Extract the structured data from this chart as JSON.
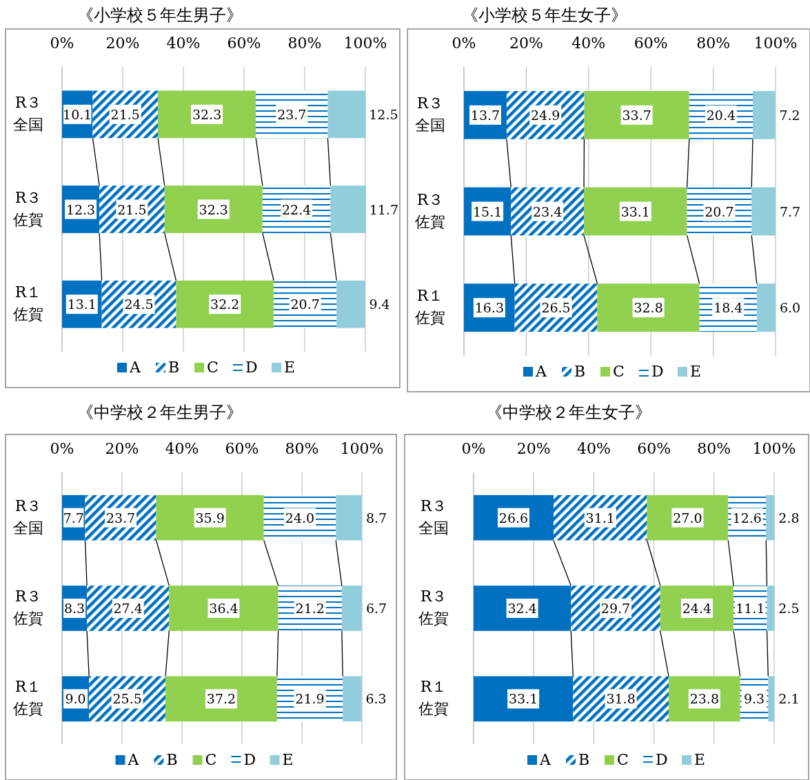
{
  "chart_data": [
    {
      "type": "bar",
      "orientation": "horizontal",
      "stacked": true,
      "title": "《小学校５年生男子》",
      "categories": [
        "R３全国",
        "R３佐賀",
        "R１佐賀"
      ],
      "xlim": [
        0,
        100
      ],
      "xticks": [
        {
          "value": 0,
          "label": "0%"
        },
        {
          "value": 20,
          "label": "20%"
        },
        {
          "value": 40,
          "label": "40%"
        },
        {
          "value": 60,
          "label": "60%"
        },
        {
          "value": 80,
          "label": "80%"
        },
        {
          "value": 100,
          "label": "100%"
        }
      ],
      "grid": "x",
      "legend": "bottom",
      "series": [
        {
          "name": "A",
          "color": "#0070c0",
          "values": [
            10.1,
            12.3,
            13.1
          ],
          "value_labels": [
            "10.1",
            "12.3",
            "13.1"
          ]
        },
        {
          "name": "B",
          "color": "#0070c0",
          "values": [
            21.5,
            21.5,
            24.5
          ],
          "value_labels": [
            "21.5",
            "21.5",
            "24.5"
          ]
        },
        {
          "name": "C",
          "color": "#92d050",
          "values": [
            32.3,
            32.3,
            32.2
          ],
          "value_labels": [
            "32.3",
            "32.3",
            "32.2"
          ]
        },
        {
          "name": "D",
          "color": "#0070c0",
          "values": [
            23.7,
            22.4,
            20.7
          ],
          "value_labels": [
            "23.7",
            "22.4",
            "20.7"
          ]
        },
        {
          "name": "E",
          "color": "#92cddc",
          "values": [
            12.5,
            11.7,
            9.4
          ],
          "value_labels": [
            "12.5",
            "11.7",
            "9.4"
          ]
        }
      ]
    },
    {
      "type": "bar",
      "orientation": "horizontal",
      "stacked": true,
      "title": "《小学校５年生女子》",
      "categories": [
        "R３全国",
        "R３佐賀",
        "R１佐賀"
      ],
      "xlim": [
        0,
        100
      ],
      "xticks": [
        {
          "value": 0,
          "label": "0%"
        },
        {
          "value": 20,
          "label": "20%"
        },
        {
          "value": 40,
          "label": "40%"
        },
        {
          "value": 60,
          "label": "60%"
        },
        {
          "value": 80,
          "label": "80%"
        },
        {
          "value": 100,
          "label": "100%"
        }
      ],
      "grid": "x",
      "legend": "bottom",
      "series": [
        {
          "name": "A",
          "color": "#0070c0",
          "values": [
            13.7,
            15.1,
            16.3
          ],
          "value_labels": [
            "13.7",
            "15.1",
            "16.3"
          ]
        },
        {
          "name": "B",
          "color": "#0070c0",
          "values": [
            24.9,
            23.4,
            26.5
          ],
          "value_labels": [
            "24.9",
            "23.4",
            "26.5"
          ]
        },
        {
          "name": "C",
          "color": "#92d050",
          "values": [
            33.7,
            33.1,
            32.8
          ],
          "value_labels": [
            "33.7",
            "33.1",
            "32.8"
          ]
        },
        {
          "name": "D",
          "color": "#0070c0",
          "values": [
            20.4,
            20.7,
            18.4
          ],
          "value_labels": [
            "20.4",
            "20.7",
            "18.4"
          ]
        },
        {
          "name": "E",
          "color": "#92cddc",
          "values": [
            7.2,
            7.7,
            6.0
          ],
          "value_labels": [
            "7.2",
            "7.7",
            "6.0"
          ]
        }
      ]
    },
    {
      "type": "bar",
      "orientation": "horizontal",
      "stacked": true,
      "title": "《中学校２年生男子》",
      "categories": [
        "R３全国",
        "R３佐賀",
        "R１佐賀"
      ],
      "xlim": [
        0,
        100
      ],
      "xticks": [
        {
          "value": 0,
          "label": "0%"
        },
        {
          "value": 20,
          "label": "20%"
        },
        {
          "value": 40,
          "label": "40%"
        },
        {
          "value": 60,
          "label": "60%"
        },
        {
          "value": 80,
          "label": "80%"
        },
        {
          "value": 100,
          "label": "100%"
        }
      ],
      "grid": "x",
      "legend": "bottom",
      "series": [
        {
          "name": "A",
          "color": "#0070c0",
          "values": [
            7.7,
            8.3,
            9.0
          ],
          "value_labels": [
            "7.7",
            "8.3",
            "9.0"
          ]
        },
        {
          "name": "B",
          "color": "#0070c0",
          "values": [
            23.7,
            27.4,
            25.5
          ],
          "value_labels": [
            "23.7",
            "27.4",
            "25.5"
          ]
        },
        {
          "name": "C",
          "color": "#92d050",
          "values": [
            35.9,
            36.4,
            37.2
          ],
          "value_labels": [
            "35.9",
            "36.4",
            "37.2"
          ]
        },
        {
          "name": "D",
          "color": "#0070c0",
          "values": [
            24.0,
            21.2,
            21.9
          ],
          "value_labels": [
            "24.0",
            "21.2",
            "21.9"
          ]
        },
        {
          "name": "E",
          "color": "#92cddc",
          "values": [
            8.7,
            6.7,
            6.3
          ],
          "value_labels": [
            "8.7",
            "6.7",
            "6.3"
          ]
        }
      ]
    },
    {
      "type": "bar",
      "orientation": "horizontal",
      "stacked": true,
      "title": "《中学校２年生女子》",
      "categories": [
        "R３全国",
        "R３佐賀",
        "R１佐賀"
      ],
      "xlim": [
        0,
        100
      ],
      "xticks": [
        {
          "value": 0,
          "label": "0%"
        },
        {
          "value": 20,
          "label": "20%"
        },
        {
          "value": 40,
          "label": "40%"
        },
        {
          "value": 60,
          "label": "60%"
        },
        {
          "value": 80,
          "label": "80%"
        },
        {
          "value": 100,
          "label": "100%"
        }
      ],
      "grid": "x",
      "legend": "bottom",
      "series": [
        {
          "name": "A",
          "color": "#0070c0",
          "values": [
            26.6,
            32.4,
            33.1
          ],
          "value_labels": [
            "26.6",
            "32.4",
            "33.1"
          ]
        },
        {
          "name": "B",
          "color": "#0070c0",
          "values": [
            31.1,
            29.7,
            31.8
          ],
          "value_labels": [
            "31.1",
            "29.7",
            "31.8"
          ]
        },
        {
          "name": "C",
          "color": "#92d050",
          "values": [
            27.0,
            24.4,
            23.8
          ],
          "value_labels": [
            "27.0",
            "24.4",
            "23.8"
          ]
        },
        {
          "name": "D",
          "color": "#0070c0",
          "values": [
            12.6,
            11.1,
            9.3
          ],
          "value_labels": [
            "12.6",
            "11.1",
            "9.3"
          ]
        },
        {
          "name": "E",
          "color": "#92cddc",
          "values": [
            2.8,
            2.5,
            2.1
          ],
          "value_labels": [
            "2.8",
            "2.5",
            "2.1"
          ]
        }
      ]
    }
  ]
}
